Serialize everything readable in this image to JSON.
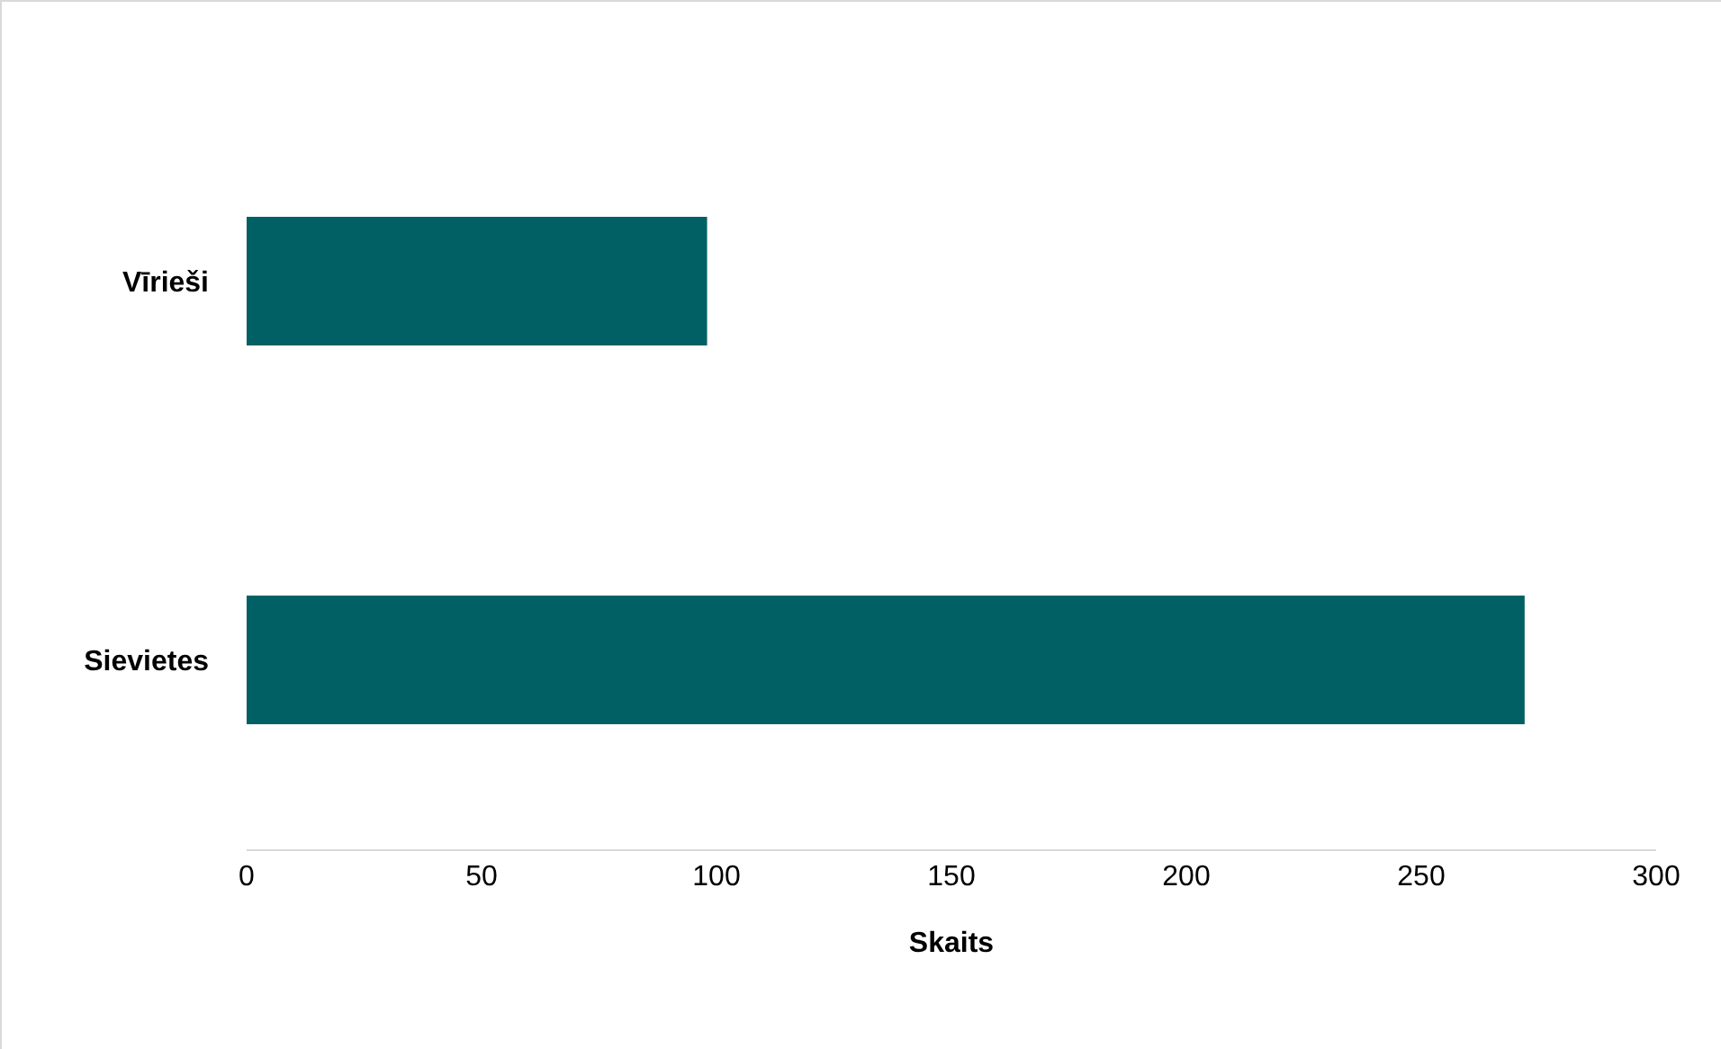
{
  "chart_data": {
    "type": "bar",
    "orientation": "horizontal",
    "xlabel": "Skaits",
    "categories": [
      "Vīrieši",
      "Sievietes"
    ],
    "values": [
      98,
      272
    ],
    "color": "#006064",
    "xlim": [
      0,
      300
    ],
    "xticks": [
      0,
      50,
      100,
      150,
      200,
      250,
      300
    ],
    "grid": false
  }
}
